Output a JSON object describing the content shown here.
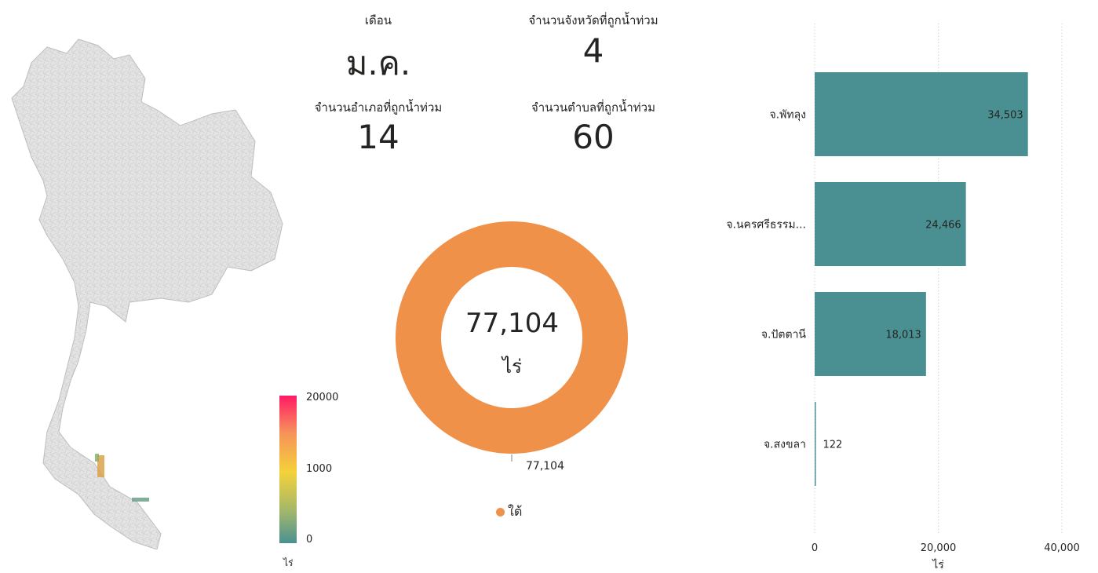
{
  "kpis": {
    "month_label": "เดือน",
    "month_value": "ม.ค.",
    "provinces_label": "จำนวนจังหวัดที่ถูกน้ำท่วม",
    "provinces_value": "4",
    "districts_label": "จำนวนอำเภอที่ถูกน้ำท่วม",
    "districts_value": "14",
    "subdistricts_label": "จำนวนตำบลที่ถูกน้ำท่วม",
    "subdistricts_value": "60"
  },
  "map_legend": {
    "max": "20000",
    "mid": "1000",
    "min": "0",
    "unit": "ไร่",
    "colors": [
      "#ff1a66",
      "#f6925a",
      "#f4d23a",
      "#a3b76a",
      "#4a9191"
    ]
  },
  "chart_data": [
    {
      "type": "pie",
      "title": "",
      "categories": [
        "ใต้"
      ],
      "values": [
        77104
      ],
      "center_value": "77,104",
      "center_unit": "ไร่",
      "data_label": "77,104",
      "legend": [
        "ใต้"
      ],
      "color": "#f0914a"
    },
    {
      "type": "bar",
      "orientation": "horizontal",
      "categories": [
        "จ.พัทลุง",
        "จ.นครศรีธรรม...",
        "จ.ปัตตานี",
        "จ.สงขลา"
      ],
      "values": [
        34503,
        24466,
        18013,
        122
      ],
      "data_labels": [
        "34,503",
        "24,466",
        "18,013",
        "122"
      ],
      "xlabel": "ไร่",
      "xlim": [
        0,
        40000
      ],
      "ticks": [
        0,
        20000,
        40000
      ],
      "tick_labels": [
        "0",
        "20,000",
        "40,000"
      ],
      "grid": true,
      "color": "#4a9092"
    }
  ]
}
